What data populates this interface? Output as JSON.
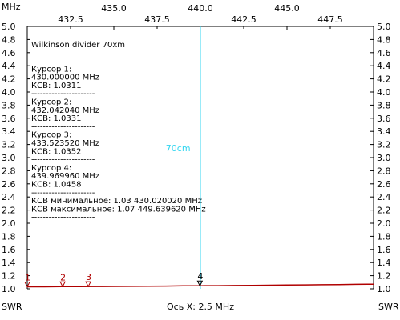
{
  "chart_data": {
    "type": "line",
    "title": "",
    "xlabel": "Ось X: 2.5 MHz",
    "x_unit_label": "MHz",
    "y_unit_left": "SWR",
    "y_unit_right": "SWR",
    "xlim": [
      430.0,
      450.0
    ],
    "ylim": [
      1.0,
      5.0
    ],
    "x_ticks_top": [
      "435.0",
      "440.0",
      "445.0"
    ],
    "x_ticks_bottom": [
      "432.5",
      "437.5",
      "442.5",
      "447.5"
    ],
    "y_ticks": [
      "1.0",
      "1.2",
      "1.4",
      "1.6",
      "1.8",
      "2.0",
      "2.2",
      "2.4",
      "2.6",
      "2.8",
      "3.0",
      "3.2",
      "3.4",
      "3.6",
      "3.8",
      "4.0",
      "4.2",
      "4.4",
      "4.6",
      "4.8",
      "5.0"
    ],
    "grid": false,
    "line_color": "#b00000",
    "cursor_line_color": "#33d6f0",
    "series": [
      {
        "x": [
          430.0,
          431.0,
          432.0,
          433.0,
          434.0,
          435.0,
          436.0,
          437.0,
          438.0,
          439.0,
          440.0,
          441.0,
          442.0,
          443.0,
          444.0,
          445.0,
          446.0,
          447.0,
          448.0,
          449.0,
          449.64,
          450.0
        ],
        "values": [
          1.03,
          1.031,
          1.033,
          1.034,
          1.035,
          1.036,
          1.038,
          1.04,
          1.042,
          1.045,
          1.046,
          1.048,
          1.05,
          1.052,
          1.055,
          1.058,
          1.06,
          1.062,
          1.065,
          1.068,
          1.07,
          1.069
        ]
      }
    ],
    "cursor_line_x": 440.0,
    "annotation": {
      "text": "70cm",
      "x": 438.0,
      "y": 3.1
    },
    "markers": [
      {
        "label": "1",
        "x": 430.0,
        "y": 1.0311
      },
      {
        "label": "2",
        "x": 432.04204,
        "y": 1.0331
      },
      {
        "label": "3",
        "x": 433.52352,
        "y": 1.0352
      },
      {
        "label": "4",
        "x": 439.96996,
        "y": 1.0458
      }
    ],
    "info_lines": [
      "Wilkinson divider 70xm",
      "",
      "Курсор 1:",
      "430.000000 MHz",
      "КСВ: 1.0311",
      "----------------------",
      "Курсор 2:",
      "432.042040 MHz",
      "КСВ: 1.0331",
      "----------------------",
      "Курсор 3:",
      "433.523520 MHz",
      "КСВ: 1.0352",
      "----------------------",
      "Курсор 4:",
      "439.969960 MHz",
      "КСВ: 1.0458",
      "----------------------",
      "КСВ минимальное: 1.03  430.020020 MHz",
      "КСВ максимальное: 1.07  449.639620 MHz",
      "----------------------"
    ]
  }
}
